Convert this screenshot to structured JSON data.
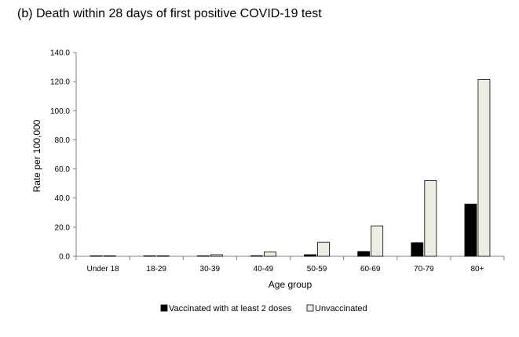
{
  "chart_data": {
    "type": "bar",
    "title": "(b) Death within 28 days of first positive COVID-19 test",
    "xlabel": "Age group",
    "ylabel": "Rate per 100,000",
    "ylim": [
      0,
      140
    ],
    "yticks": [
      "0.0",
      "20.0",
      "40.0",
      "60.0",
      "80.0",
      "100.0",
      "120.0",
      "140.0"
    ],
    "grid": false,
    "legend_position": "bottom",
    "categories": [
      "Under 18",
      "18-29",
      "30-39",
      "40-49",
      "50-59",
      "60-69",
      "70-79",
      "80+"
    ],
    "series": [
      {
        "name": "Vaccinated with at least 2 doses",
        "color": "#000000",
        "values": [
          0.0,
          0.1,
          0.1,
          0.4,
          1.1,
          3.3,
          9.3,
          35.9
        ]
      },
      {
        "name": "Unvaccinated",
        "color": "#eeede3",
        "values": [
          0.0,
          0.2,
          1.1,
          3.0,
          9.6,
          20.9,
          52.0,
          121.5
        ]
      }
    ]
  }
}
